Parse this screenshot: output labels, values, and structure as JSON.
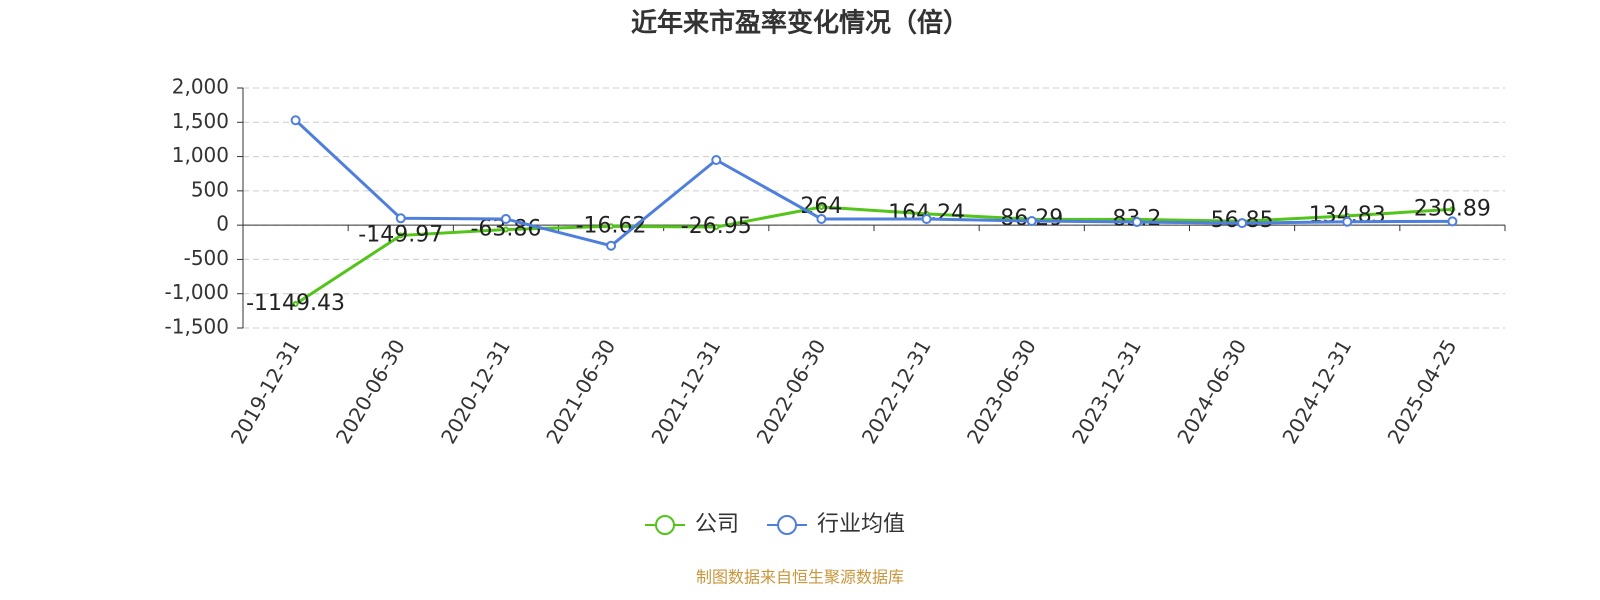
{
  "chart_data": {
    "type": "line",
    "title": "近年来市盈率变化情况（倍）",
    "categories": [
      "2019-12-31",
      "2020-06-30",
      "2020-12-31",
      "2021-06-30",
      "2021-12-31",
      "2022-06-30",
      "2022-12-31",
      "2023-06-30",
      "2023-12-31",
      "2024-06-30",
      "2024-12-31",
      "2025-04-25"
    ],
    "series": [
      {
        "name": "公司",
        "color": "#52c41a",
        "values": [
          -1149.43,
          -149.97,
          -63.86,
          -16.62,
          -26.95,
          264,
          164.24,
          86.29,
          83.2,
          56.85,
          134.83,
          230.89
        ],
        "show_labels": true
      },
      {
        "name": "行业均值",
        "color": "#4f7fdc",
        "values": [
          1530,
          100,
          90,
          -300,
          950,
          90,
          90,
          60,
          45,
          30,
          50,
          55
        ],
        "show_labels": false
      }
    ],
    "ylim": [
      -1500,
      2000
    ],
    "yticks": [
      {
        "value": -1500,
        "label": "-1,500"
      },
      {
        "value": -1000,
        "label": "-1,000"
      },
      -500,
      0,
      500,
      {
        "value": 1000,
        "label": "1,000"
      },
      {
        "value": 1500,
        "label": "1,500"
      },
      {
        "value": 2000,
        "label": "2,000"
      }
    ],
    "grid": true,
    "source": "制图数据来自恒生聚源数据库"
  }
}
